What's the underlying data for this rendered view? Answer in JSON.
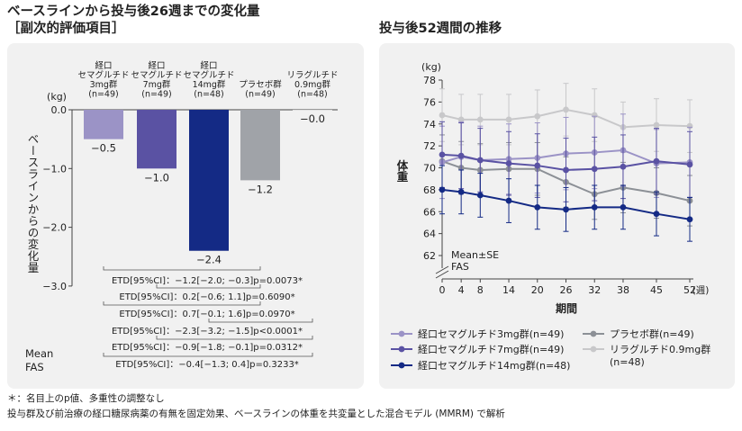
{
  "header": {
    "left_title_line1": "ベースラインから投与後26週までの変化量",
    "left_title_line2": "［副次的評価項目］",
    "right_title": "投与後52週間の推移"
  },
  "left_chart": {
    "ylabel": "ベースラインからの変化量",
    "unit_label": "(kg)",
    "y_ticks": [
      "0.0",
      "−1.0",
      "−2.0",
      "−3.0"
    ],
    "mean_label": "Mean",
    "fas_label": "FAS",
    "group_labels": [
      [
        "経口",
        "セマグルチド",
        "3mg群",
        "(n=49)"
      ],
      [
        "経口",
        "セマグルチド",
        "7mg群",
        "(n=49)"
      ],
      [
        "経口",
        "セマグルチド",
        "14mg群",
        "(n=48)"
      ],
      [
        "プラセボ群",
        "(n=49)"
      ],
      [
        "リラグルチド",
        "0.9mg群",
        "(n=48)"
      ]
    ],
    "value_labels": [
      "−0.5",
      "−1.0",
      "−2.4",
      "−1.2",
      "−0.0"
    ],
    "etd_lines": [
      "ETD[95%CI]：−1.2[−2.0; −0.3]p=0.0073*",
      "ETD[95%CI]：0.2[−0.6; 1.1]p=0.6090*",
      "ETD[95%CI]：0.7[−0.1; 1.6]p=0.0970*",
      "ETD[95%CI]：−2.3[−3.2; −1.5]p<0.0001*",
      "ETD[95%CI]：−0.9[−1.8; −0.1]p=0.0312*",
      "ETD[95%CI]：−0.4[−1.3; 0.4]p=0.3233*"
    ]
  },
  "right_chart": {
    "ylabel": "体重",
    "unit_label": "(kg)",
    "xlabel": "期間",
    "week_unit": "(週)",
    "mean_label": "Mean±SE",
    "fas_label": "FAS",
    "x_tick_labels": [
      "0",
      "4",
      "8",
      "14",
      "20",
      "26",
      "32",
      "38",
      "45",
      "52"
    ],
    "y_tick_labels": [
      "62",
      "64",
      "66",
      "68",
      "70",
      "72",
      "74",
      "76",
      "78"
    ]
  },
  "legend": [
    "経口セマグルチド3mg群(n=49)",
    "経口セマグルチド7mg群(n=49)",
    "経口セマグルチド14mg群(n=48)",
    "プラセボ群(n=49)",
    "リラグルチド0.9mg群",
    "(n=48)"
  ],
  "footnotes": [
    "＊：名目上のp値、多重性の調整なし",
    "投与群及び前治療の経口糖尿病薬の有無を固定効果、ベースラインの体重を共変量とした混合モデル (MMRM) で解析"
  ],
  "chart_data": [
    {
      "type": "bar",
      "title": "ベースラインから投与後26週までの変化量［副次的評価項目］",
      "ylabel": "ベースラインからの変化量 (kg)",
      "ylim": [
        -3.0,
        0.0
      ],
      "categories": [
        "経口セマグルチド3mg群",
        "経口セマグルチド7mg群",
        "経口セマグルチド14mg群",
        "プラセボ群",
        "リラグルチド0.9mg群"
      ],
      "values": [
        -0.5,
        -1.0,
        -2.4,
        -1.2,
        -0.0
      ],
      "colors": [
        "#9b93c6",
        "#5a52a3",
        "#142a85",
        "#a0a3a8",
        "#d2d2d4"
      ]
    },
    {
      "type": "line",
      "title": "投与後52週間の推移",
      "xlabel": "期間",
      "ylabel": "体重 (kg)",
      "ylim": [
        62,
        78
      ],
      "x": [
        0,
        4,
        8,
        14,
        20,
        26,
        32,
        38,
        45,
        52
      ],
      "series": [
        {
          "name": "経口セマグルチド3mg群(n=49)",
          "color": "#9b93c6",
          "values": [
            70.5,
            71.0,
            70.7,
            70.8,
            70.9,
            71.3,
            71.4,
            71.6,
            70.4,
            70.5
          ],
          "se": [
            3.3,
            3.2,
            3.1,
            3.2,
            3.2,
            3.3,
            3.3,
            3.3,
            3.1,
            3.2
          ]
        },
        {
          "name": "経口セマグルチド7mg群(n=49)",
          "color": "#5a52a3",
          "values": [
            71.2,
            71.1,
            70.7,
            70.4,
            70.2,
            69.8,
            69.9,
            70.1,
            70.6,
            70.3
          ],
          "se": [
            3.0,
            3.0,
            2.9,
            2.9,
            2.9,
            2.9,
            2.9,
            2.9,
            3.0,
            3.0
          ]
        },
        {
          "name": "経口セマグルチド14mg群(n=48)",
          "color": "#142a85",
          "values": [
            68.0,
            67.8,
            67.5,
            67.0,
            66.4,
            66.2,
            66.4,
            66.4,
            65.8,
            65.3
          ],
          "se": [
            2.2,
            2.0,
            2.0,
            2.0,
            2.0,
            2.0,
            2.0,
            2.0,
            2.0,
            2.0
          ]
        },
        {
          "name": "プラセボ群(n=49)",
          "color": "#8c9096",
          "values": [
            70.6,
            70.0,
            69.8,
            69.9,
            69.9,
            68.7,
            67.6,
            68.2,
            67.7,
            67.0
          ],
          "se": [
            2.4,
            2.4,
            2.4,
            2.4,
            2.4,
            2.3,
            2.3,
            2.3,
            2.3,
            2.3
          ]
        },
        {
          "name": "リラグルチド0.9mg群(n=48)",
          "color": "#c8c8ca",
          "values": [
            74.8,
            74.4,
            74.4,
            74.4,
            74.7,
            75.3,
            74.8,
            73.7,
            73.9,
            73.8
          ],
          "se": [
            2.4,
            2.3,
            2.3,
            2.3,
            2.4,
            2.4,
            2.4,
            2.3,
            2.4,
            2.4
          ]
        }
      ]
    }
  ]
}
